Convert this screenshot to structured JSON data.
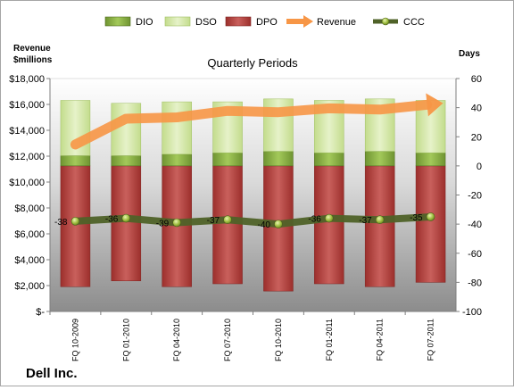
{
  "chart_data": {
    "type": "bar",
    "subtitle": "Quarterly Periods",
    "company": "Dell Inc.",
    "left_axis": {
      "title_line1": "Revenue",
      "title_line2": "$millions",
      "ylim": [
        0,
        18000
      ],
      "ticks": [
        0,
        2000,
        4000,
        6000,
        8000,
        10000,
        12000,
        14000,
        16000,
        18000
      ],
      "tick_labels": [
        "$-",
        "$2,000",
        "$4,000",
        "$6,000",
        "$8,000",
        "$10,000",
        "$12,000",
        "$14,000",
        "$16,000",
        "$18,000"
      ]
    },
    "right_axis": {
      "title": "Days",
      "ylim": [
        -100,
        60
      ],
      "ticks": [
        -100,
        -80,
        -60,
        -40,
        -20,
        0,
        20,
        40,
        60
      ],
      "tick_labels": [
        "-100",
        "-80",
        "-60",
        "-40",
        "-20",
        "0",
        "20",
        "40",
        "60"
      ]
    },
    "categories": [
      "FQ 10-2009",
      "FQ 01-2010",
      "FQ 04-2010",
      "FQ 07-2010",
      "FQ 10-2010",
      "FQ 01-2011",
      "FQ 04-2011",
      "FQ 07-2011"
    ],
    "series": [
      {
        "name": "DIO",
        "kind": "bar-days",
        "values": [
          7,
          7,
          8,
          9,
          10,
          9,
          10,
          9
        ],
        "color": "#8db33c"
      },
      {
        "name": "DSO",
        "kind": "bar-days",
        "values": [
          38,
          36,
          36,
          35,
          36,
          36,
          36,
          36
        ],
        "color": "#d6e8a8"
      },
      {
        "name": "DPO",
        "kind": "bar-days-negative",
        "values": [
          83,
          79,
          83,
          81,
          86,
          81,
          83,
          80
        ],
        "color": "#c0504d"
      },
      {
        "name": "Revenue",
        "kind": "line-left",
        "values": [
          12900,
          14900,
          15000,
          15500,
          15400,
          15700,
          15600,
          16000
        ],
        "color": "#f79646"
      },
      {
        "name": "CCC",
        "kind": "line-days",
        "values": [
          -38,
          -36,
          -39,
          -37,
          -40,
          -36,
          -37,
          -35
        ],
        "labels": [
          "-38",
          "-36",
          "-39",
          "-37",
          "-40",
          "-36",
          "-37",
          "-35"
        ],
        "color": "#4f6228"
      }
    ],
    "legend_position": "top",
    "grid": false
  }
}
